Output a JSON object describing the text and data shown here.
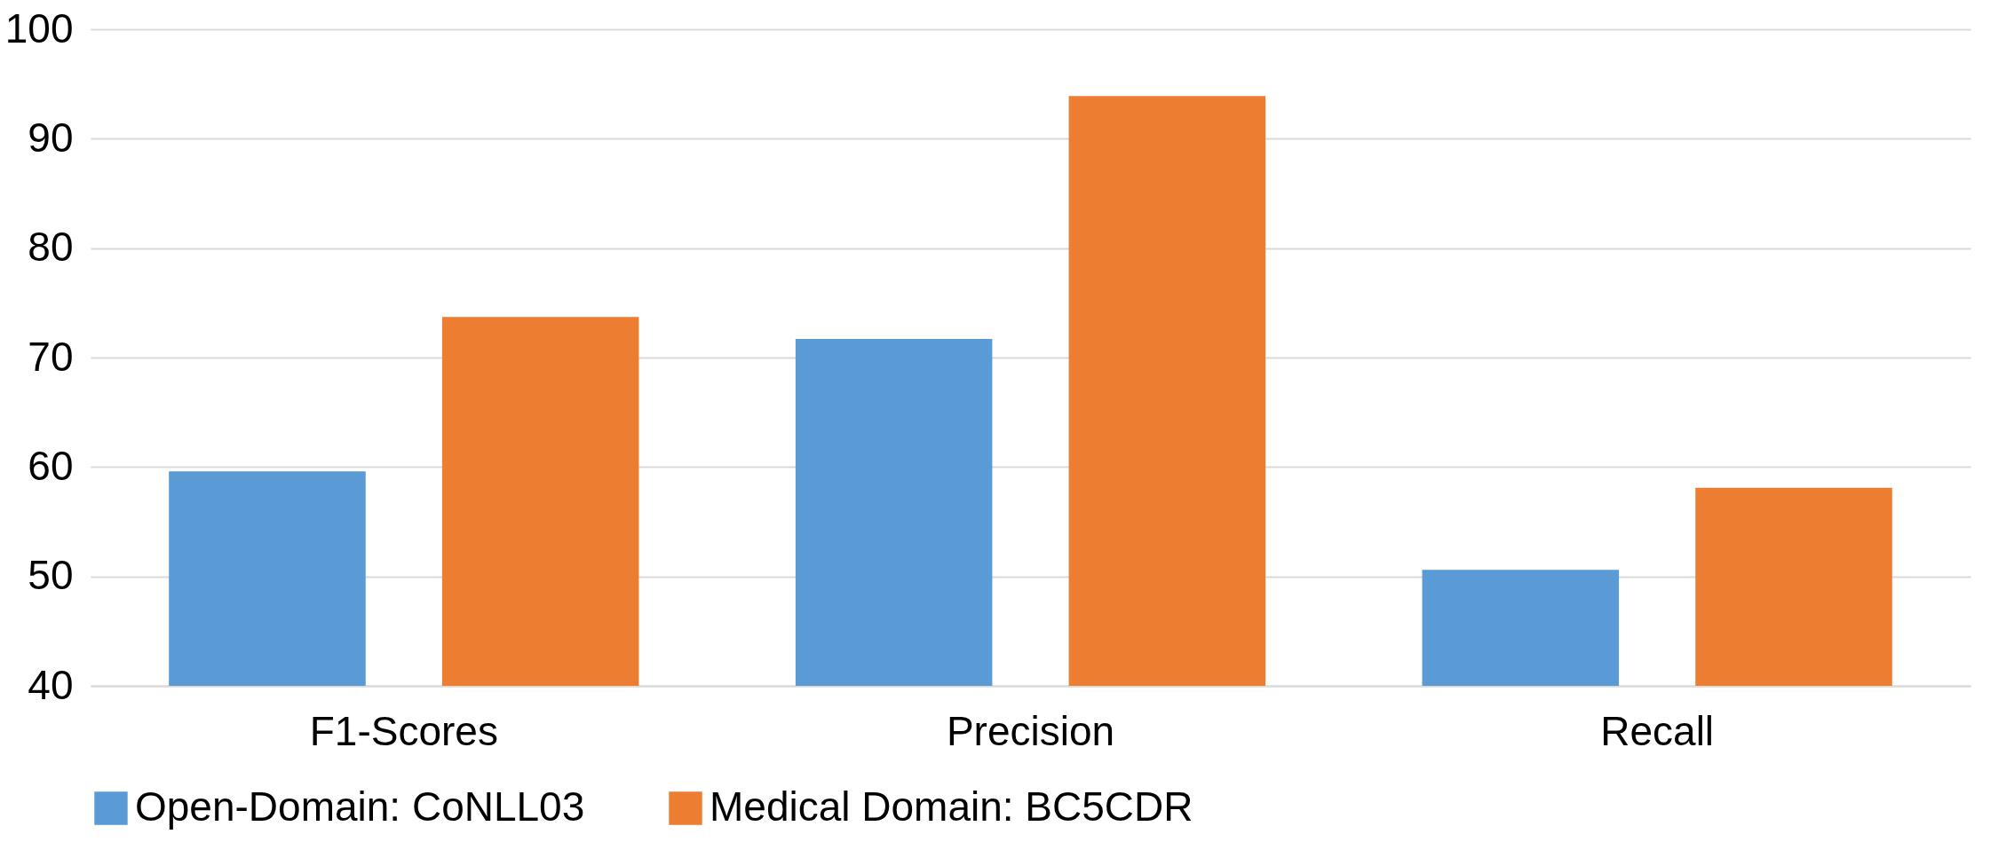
{
  "chart_data": {
    "type": "bar",
    "categories": [
      "F1-Scores",
      "Precision",
      "Recall"
    ],
    "series": [
      {
        "name": "Open-Domain: CoNLL03",
        "color": "#5b9bd5",
        "values": [
          59.6,
          71.7,
          50.6
        ]
      },
      {
        "name": "Medical Domain: BC5CDR",
        "color": "#ed7d31",
        "values": [
          73.7,
          93.9,
          58.1
        ]
      }
    ],
    "ylim": [
      40,
      100
    ],
    "yticks": [
      40,
      50,
      60,
      70,
      80,
      90,
      100
    ],
    "grid": "y",
    "legend": "bottom"
  }
}
